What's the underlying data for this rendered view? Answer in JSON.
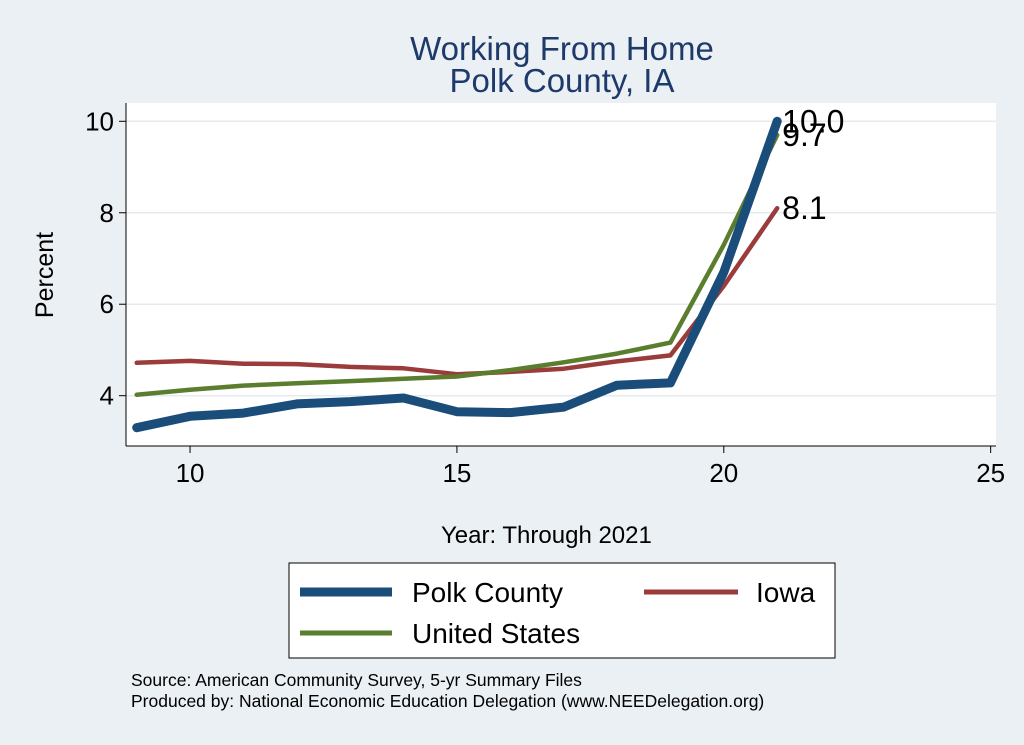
{
  "chart_data": {
    "type": "line",
    "title": [
      "Working From Home",
      "Polk County, IA"
    ],
    "xlabel": "Year: Through 2021",
    "ylabel": "Percent",
    "xlim": [
      8.8,
      25.1
    ],
    "ylim": [
      2.9,
      10.4
    ],
    "xticks": [
      10,
      15,
      20,
      25
    ],
    "yticks": [
      4,
      6,
      8,
      10
    ],
    "grid": "horizontal",
    "legend_position": "bottom",
    "series": [
      {
        "name": "Polk County",
        "color": "#1b4d7a",
        "x": [
          9,
          10,
          11,
          12,
          13,
          14,
          15,
          16,
          17,
          18,
          19,
          20,
          21
        ],
        "y": [
          3.3,
          3.55,
          3.62,
          3.82,
          3.87,
          3.95,
          3.65,
          3.63,
          3.75,
          4.23,
          4.28,
          6.7,
          10.0
        ],
        "end_label": "10.0"
      },
      {
        "name": "Iowa",
        "color": "#9b3b3b",
        "x": [
          9,
          10,
          11,
          12,
          13,
          14,
          15,
          16,
          17,
          18,
          19,
          20,
          21
        ],
        "y": [
          4.72,
          4.76,
          4.7,
          4.69,
          4.63,
          4.6,
          4.47,
          4.52,
          4.59,
          4.75,
          4.88,
          6.4,
          8.1
        ],
        "end_label": "8.1"
      },
      {
        "name": "United States",
        "color": "#5a7d2e",
        "x": [
          9,
          10,
          11,
          12,
          13,
          14,
          15,
          16,
          17,
          18,
          19,
          20,
          21
        ],
        "y": [
          4.02,
          4.13,
          4.22,
          4.27,
          4.32,
          4.37,
          4.42,
          4.56,
          4.73,
          4.92,
          5.16,
          7.3,
          9.7
        ],
        "end_label": "9.7"
      }
    ],
    "notes": [
      "Source: American Community Survey, 5-yr Summary Files",
      "Produced by: National Economic Education Delegation (www.NEEDelegation.org)"
    ]
  }
}
